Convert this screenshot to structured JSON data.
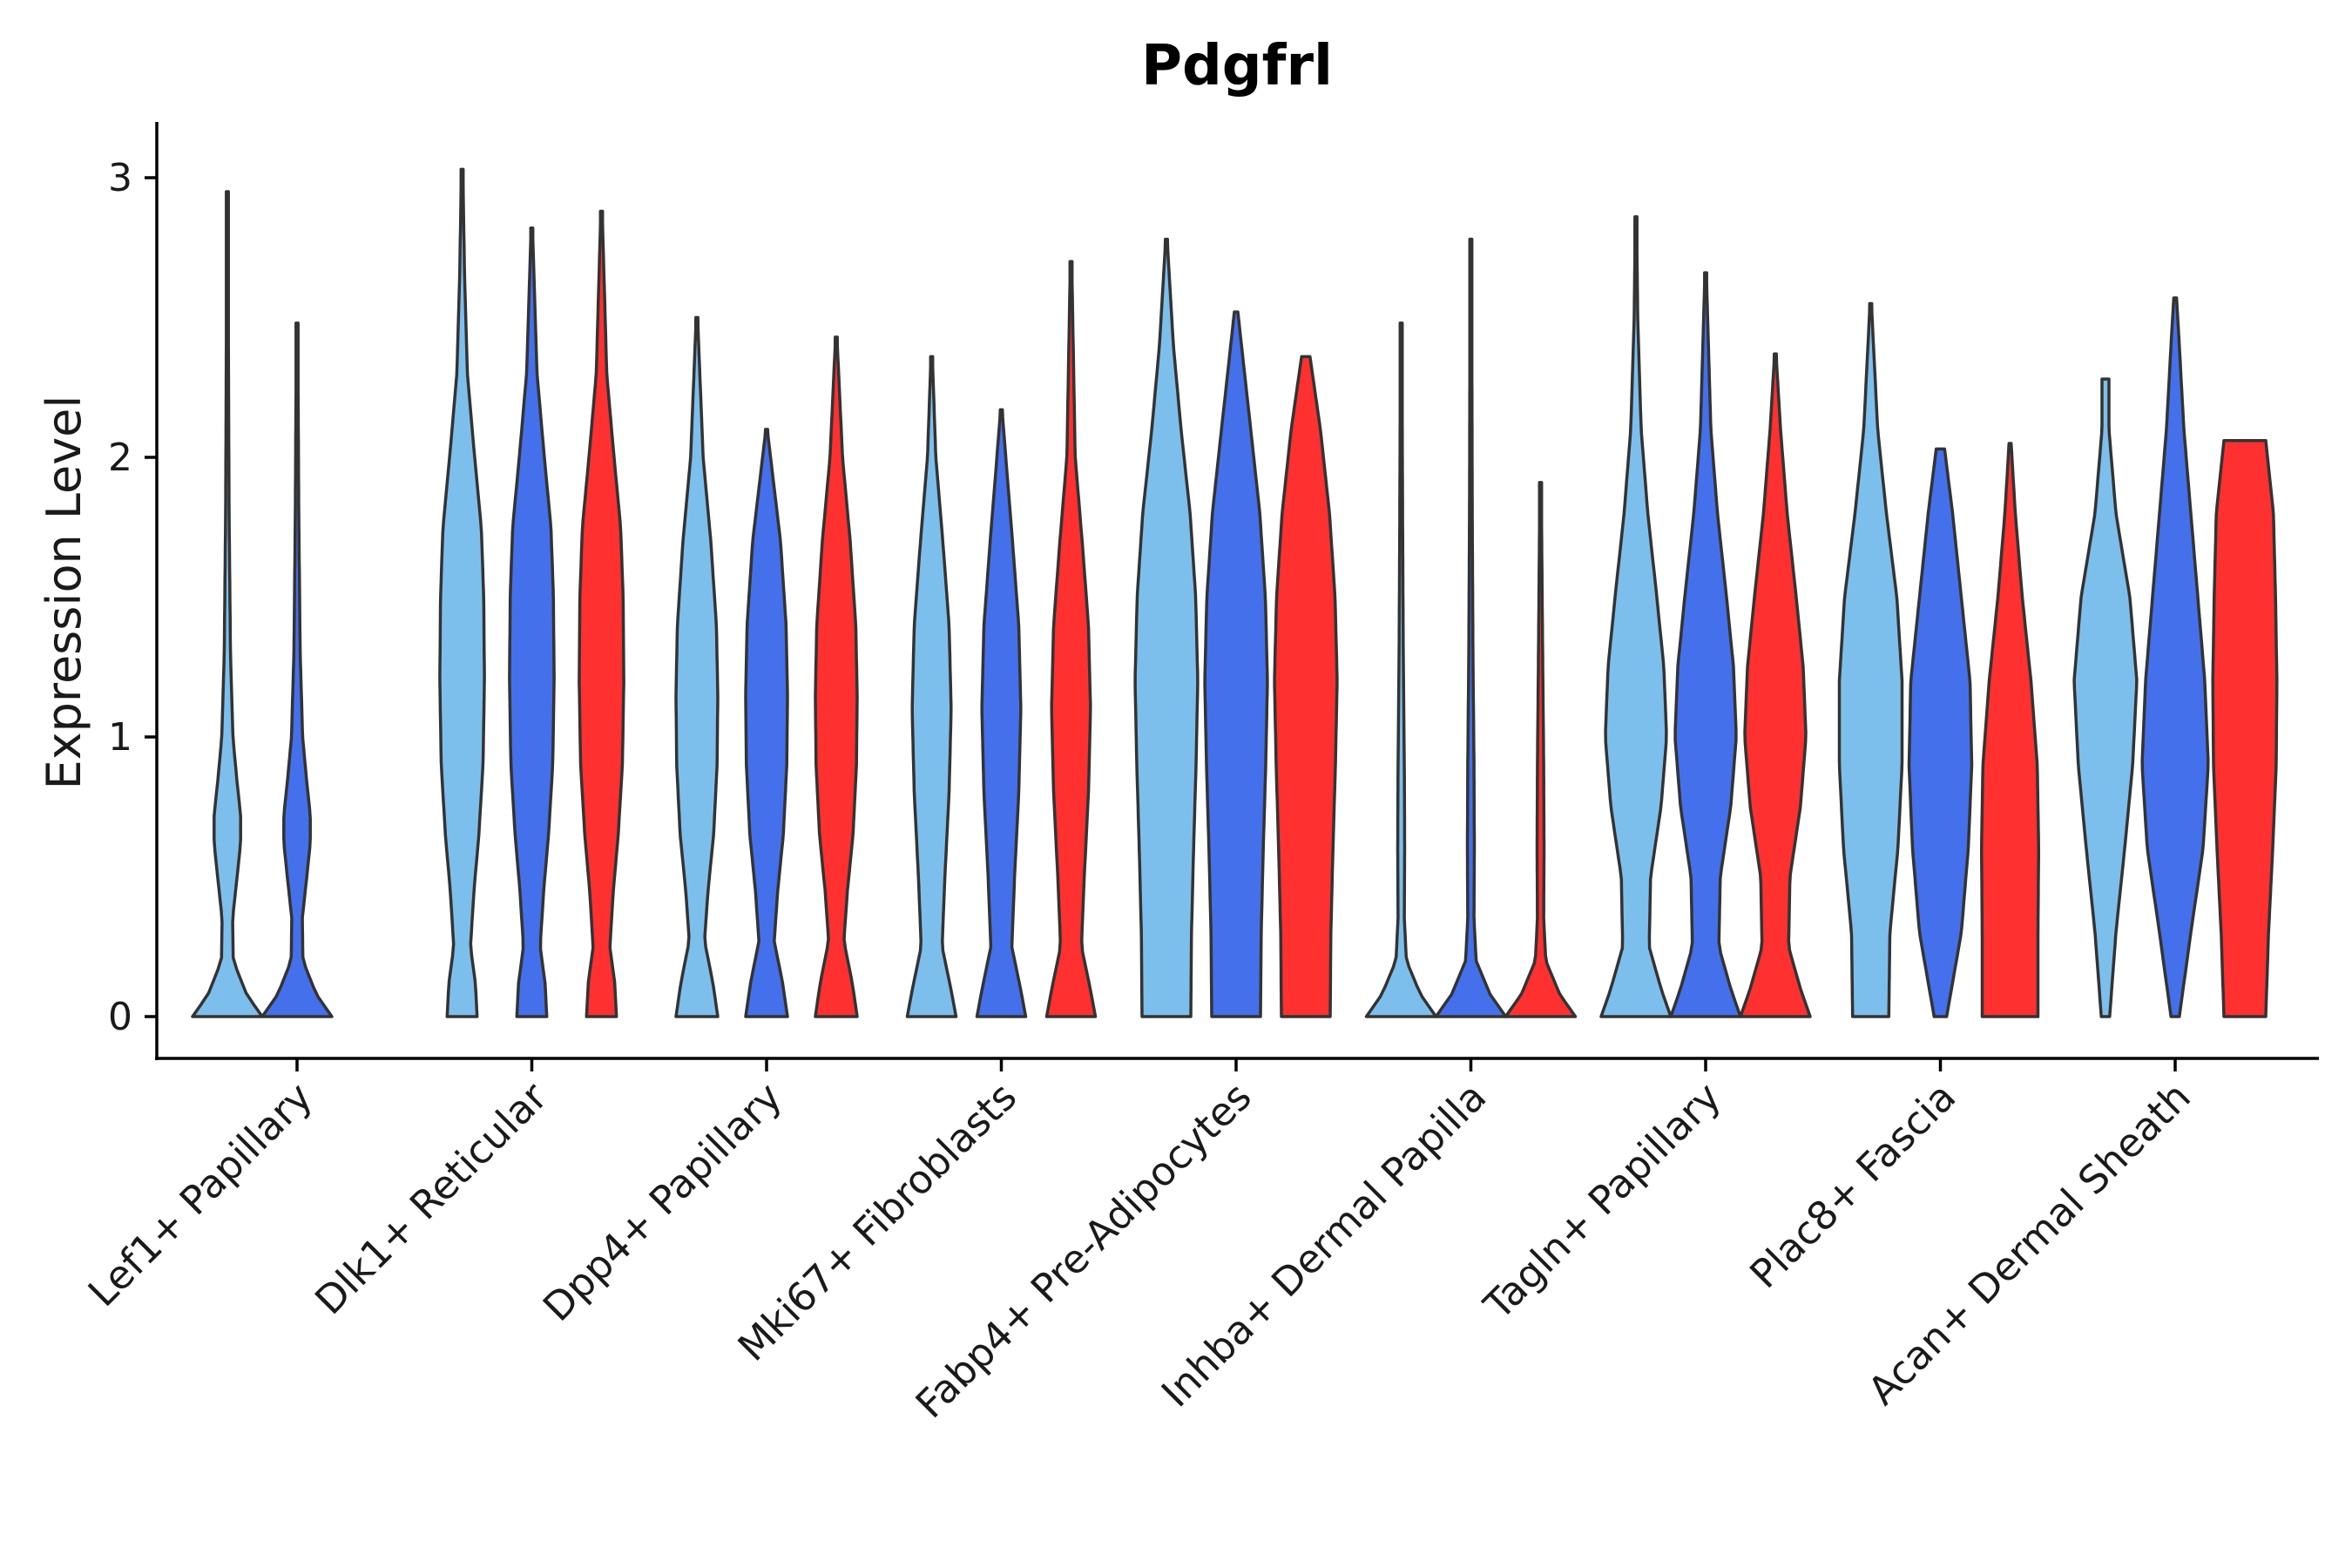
{
  "chart_data": {
    "type": "violin",
    "title": "Pdgfrl",
    "xlabel": "",
    "ylabel": "Expression Level",
    "ylim": [
      -0.15,
      3.2
    ],
    "yticks": [
      0,
      1,
      2,
      3
    ],
    "grid": false,
    "legend": "none",
    "categories": [
      "Lef1+ Papillary",
      "Dlk1+ Reticular",
      "Dpp4+ Papillary",
      "Mki67+ Fibroblasts",
      "Fabp4+ Pre-Adipocytes",
      "Inhba+ Dermal Papilla",
      "Tagln+ Papillary",
      "Plac8+ Fascia",
      "Acan+ Dermal Sheath"
    ],
    "series_colors": [
      "#7dbfec",
      "#4470eb",
      "#ff3030"
    ],
    "violins": [
      {
        "category": "Lef1+ Papillary",
        "group": 0,
        "max": 2.95,
        "density": [
          [
            0,
            1
          ],
          [
            0.08,
            0.55
          ],
          [
            0.2,
            0.17
          ],
          [
            0.35,
            0.15
          ],
          [
            0.5,
            0.28
          ],
          [
            0.62,
            0.38
          ],
          [
            0.72,
            0.38
          ],
          [
            0.85,
            0.27
          ],
          [
            1.0,
            0.16
          ],
          [
            1.3,
            0.09
          ],
          [
            1.8,
            0.05
          ],
          [
            2.4,
            0.03
          ],
          [
            2.95,
            0.02
          ]
        ]
      },
      {
        "category": "Lef1+ Papillary",
        "group": 1,
        "max": 2.48,
        "density": [
          [
            0,
            1
          ],
          [
            0.08,
            0.55
          ],
          [
            0.2,
            0.17
          ],
          [
            0.35,
            0.15
          ],
          [
            0.5,
            0.28
          ],
          [
            0.62,
            0.38
          ],
          [
            0.72,
            0.38
          ],
          [
            0.85,
            0.27
          ],
          [
            1.0,
            0.16
          ],
          [
            1.3,
            0.09
          ],
          [
            1.8,
            0.05
          ],
          [
            2.48,
            0.02
          ]
        ]
      },
      {
        "category": "Dlk1+ Reticular",
        "group": 0,
        "max": 3.03,
        "density": [
          [
            0,
            0.43
          ],
          [
            0.12,
            0.38
          ],
          [
            0.25,
            0.24
          ],
          [
            0.45,
            0.34
          ],
          [
            0.65,
            0.48
          ],
          [
            0.9,
            0.6
          ],
          [
            1.2,
            0.64
          ],
          [
            1.5,
            0.62
          ],
          [
            1.75,
            0.55
          ],
          [
            2.0,
            0.36
          ],
          [
            2.3,
            0.15
          ],
          [
            2.65,
            0.07
          ],
          [
            3.03,
            0.02
          ]
        ]
      },
      {
        "category": "Dlk1+ Reticular",
        "group": 1,
        "max": 2.82,
        "density": [
          [
            0,
            0.43
          ],
          [
            0.12,
            0.38
          ],
          [
            0.25,
            0.24
          ],
          [
            0.45,
            0.34
          ],
          [
            0.65,
            0.48
          ],
          [
            0.9,
            0.6
          ],
          [
            1.2,
            0.64
          ],
          [
            1.5,
            0.62
          ],
          [
            1.75,
            0.55
          ],
          [
            2.0,
            0.36
          ],
          [
            2.3,
            0.15
          ],
          [
            2.82,
            0.02
          ]
        ]
      },
      {
        "category": "Dlk1+ Reticular",
        "group": 2,
        "max": 2.88,
        "density": [
          [
            0,
            0.43
          ],
          [
            0.12,
            0.38
          ],
          [
            0.25,
            0.24
          ],
          [
            0.45,
            0.34
          ],
          [
            0.65,
            0.48
          ],
          [
            0.9,
            0.6
          ],
          [
            1.2,
            0.64
          ],
          [
            1.5,
            0.62
          ],
          [
            1.75,
            0.55
          ],
          [
            2.0,
            0.36
          ],
          [
            2.3,
            0.15
          ],
          [
            2.88,
            0.02
          ]
        ]
      },
      {
        "category": "Dpp4+ Papillary",
        "group": 0,
        "max": 2.5,
        "density": [
          [
            0,
            0.6
          ],
          [
            0.12,
            0.46
          ],
          [
            0.27,
            0.22
          ],
          [
            0.45,
            0.32
          ],
          [
            0.65,
            0.48
          ],
          [
            0.9,
            0.58
          ],
          [
            1.15,
            0.6
          ],
          [
            1.4,
            0.56
          ],
          [
            1.7,
            0.4
          ],
          [
            2.0,
            0.18
          ],
          [
            2.5,
            0.02
          ]
        ]
      },
      {
        "category": "Dpp4+ Papillary",
        "group": 1,
        "max": 2.1,
        "density": [
          [
            0,
            0.6
          ],
          [
            0.12,
            0.46
          ],
          [
            0.27,
            0.22
          ],
          [
            0.45,
            0.32
          ],
          [
            0.65,
            0.48
          ],
          [
            0.9,
            0.58
          ],
          [
            1.15,
            0.6
          ],
          [
            1.4,
            0.56
          ],
          [
            1.7,
            0.4
          ],
          [
            2.1,
            0.02
          ]
        ]
      },
      {
        "category": "Dpp4+ Papillary",
        "group": 2,
        "max": 2.43,
        "density": [
          [
            0,
            0.6
          ],
          [
            0.12,
            0.46
          ],
          [
            0.27,
            0.22
          ],
          [
            0.45,
            0.32
          ],
          [
            0.65,
            0.48
          ],
          [
            0.9,
            0.58
          ],
          [
            1.15,
            0.6
          ],
          [
            1.4,
            0.56
          ],
          [
            1.7,
            0.4
          ],
          [
            2.0,
            0.18
          ],
          [
            2.43,
            0.02
          ]
        ]
      },
      {
        "category": "Mki67+ Fibroblasts",
        "group": 0,
        "max": 2.36,
        "density": [
          [
            0,
            0.7
          ],
          [
            0.1,
            0.55
          ],
          [
            0.25,
            0.3
          ],
          [
            0.5,
            0.38
          ],
          [
            0.8,
            0.5
          ],
          [
            1.1,
            0.56
          ],
          [
            1.4,
            0.5
          ],
          [
            1.7,
            0.32
          ],
          [
            2.0,
            0.12
          ],
          [
            2.36,
            0.02
          ]
        ]
      },
      {
        "category": "Mki67+ Fibroblasts",
        "group": 1,
        "max": 2.17,
        "density": [
          [
            0,
            0.7
          ],
          [
            0.1,
            0.55
          ],
          [
            0.25,
            0.3
          ],
          [
            0.5,
            0.38
          ],
          [
            0.8,
            0.5
          ],
          [
            1.1,
            0.56
          ],
          [
            1.4,
            0.5
          ],
          [
            1.7,
            0.32
          ],
          [
            2.17,
            0.02
          ]
        ]
      },
      {
        "category": "Mki67+ Fibroblasts",
        "group": 2,
        "max": 2.7,
        "density": [
          [
            0,
            0.7
          ],
          [
            0.1,
            0.55
          ],
          [
            0.25,
            0.3
          ],
          [
            0.5,
            0.38
          ],
          [
            0.8,
            0.5
          ],
          [
            1.1,
            0.56
          ],
          [
            1.4,
            0.5
          ],
          [
            1.7,
            0.32
          ],
          [
            2.0,
            0.12
          ],
          [
            2.7,
            0.02
          ]
        ]
      },
      {
        "category": "Fabp4+ Pre-Adipocytes",
        "group": 0,
        "max": 2.78,
        "density": [
          [
            0,
            0.7
          ],
          [
            0.3,
            0.72
          ],
          [
            0.6,
            0.78
          ],
          [
            0.9,
            0.85
          ],
          [
            1.2,
            0.9
          ],
          [
            1.5,
            0.84
          ],
          [
            1.8,
            0.68
          ],
          [
            2.1,
            0.42
          ],
          [
            2.4,
            0.2
          ],
          [
            2.78,
            0.02
          ]
        ]
      },
      {
        "category": "Fabp4+ Pre-Adipocytes",
        "group": 1,
        "max": 2.52,
        "density": [
          [
            0,
            0.7
          ],
          [
            0.3,
            0.72
          ],
          [
            0.6,
            0.78
          ],
          [
            0.9,
            0.85
          ],
          [
            1.2,
            0.9
          ],
          [
            1.5,
            0.84
          ],
          [
            1.8,
            0.68
          ],
          [
            2.1,
            0.42
          ],
          [
            2.52,
            0.05
          ]
        ]
      },
      {
        "category": "Fabp4+ Pre-Adipocytes",
        "group": 2,
        "max": 2.36,
        "density": [
          [
            0,
            0.7
          ],
          [
            0.3,
            0.72
          ],
          [
            0.6,
            0.78
          ],
          [
            0.9,
            0.85
          ],
          [
            1.2,
            0.9
          ],
          [
            1.5,
            0.84
          ],
          [
            1.8,
            0.68
          ],
          [
            2.1,
            0.42
          ],
          [
            2.36,
            0.12
          ]
        ]
      },
      {
        "category": "Inhba+ Dermal Papilla",
        "group": 0,
        "max": 2.48,
        "density": [
          [
            0,
            1
          ],
          [
            0.08,
            0.55
          ],
          [
            0.2,
            0.15
          ],
          [
            0.35,
            0.09
          ],
          [
            0.6,
            0.1
          ],
          [
            0.9,
            0.09
          ],
          [
            1.3,
            0.06
          ],
          [
            1.8,
            0.04
          ],
          [
            2.48,
            0.02
          ]
        ]
      },
      {
        "category": "Inhba+ Dermal Papilla",
        "group": 1,
        "max": 2.78,
        "density": [
          [
            0,
            1
          ],
          [
            0.08,
            0.55
          ],
          [
            0.2,
            0.15
          ],
          [
            0.35,
            0.09
          ],
          [
            0.6,
            0.1
          ],
          [
            0.9,
            0.09
          ],
          [
            1.3,
            0.06
          ],
          [
            1.8,
            0.04
          ],
          [
            2.78,
            0.02
          ]
        ]
      },
      {
        "category": "Inhba+ Dermal Papilla",
        "group": 2,
        "max": 1.91,
        "density": [
          [
            0,
            1
          ],
          [
            0.08,
            0.55
          ],
          [
            0.2,
            0.15
          ],
          [
            0.35,
            0.09
          ],
          [
            0.6,
            0.1
          ],
          [
            0.9,
            0.09
          ],
          [
            1.3,
            0.06
          ],
          [
            1.91,
            0.02
          ]
        ]
      },
      {
        "category": "Tagln+ Papillary",
        "group": 0,
        "max": 2.86,
        "density": [
          [
            0,
            1
          ],
          [
            0.1,
            0.72
          ],
          [
            0.25,
            0.38
          ],
          [
            0.5,
            0.42
          ],
          [
            0.75,
            0.72
          ],
          [
            1.0,
            0.88
          ],
          [
            1.25,
            0.8
          ],
          [
            1.5,
            0.6
          ],
          [
            1.8,
            0.34
          ],
          [
            2.1,
            0.15
          ],
          [
            2.5,
            0.05
          ],
          [
            2.86,
            0.02
          ]
        ]
      },
      {
        "category": "Tagln+ Papillary",
        "group": 1,
        "max": 2.66,
        "density": [
          [
            0,
            1
          ],
          [
            0.1,
            0.72
          ],
          [
            0.25,
            0.38
          ],
          [
            0.5,
            0.42
          ],
          [
            0.75,
            0.72
          ],
          [
            1.0,
            0.88
          ],
          [
            1.25,
            0.8
          ],
          [
            1.5,
            0.6
          ],
          [
            1.8,
            0.34
          ],
          [
            2.1,
            0.15
          ],
          [
            2.66,
            0.02
          ]
        ]
      },
      {
        "category": "Tagln+ Papillary",
        "group": 2,
        "max": 2.37,
        "density": [
          [
            0,
            1
          ],
          [
            0.1,
            0.72
          ],
          [
            0.25,
            0.38
          ],
          [
            0.5,
            0.42
          ],
          [
            0.75,
            0.72
          ],
          [
            1.0,
            0.88
          ],
          [
            1.25,
            0.8
          ],
          [
            1.5,
            0.6
          ],
          [
            1.8,
            0.34
          ],
          [
            2.1,
            0.15
          ],
          [
            2.37,
            0.02
          ]
        ]
      },
      {
        "category": "Plac8+ Fascia",
        "group": 0,
        "max": 2.55,
        "density": [
          [
            0,
            0.52
          ],
          [
            0.3,
            0.55
          ],
          [
            0.6,
            0.78
          ],
          [
            0.9,
            0.9
          ],
          [
            1.2,
            0.9
          ],
          [
            1.5,
            0.75
          ],
          [
            1.8,
            0.45
          ],
          [
            2.1,
            0.2
          ],
          [
            2.55,
            0.02
          ]
        ]
      },
      {
        "category": "Plac8+ Fascia",
        "group": 1,
        "max": 2.03,
        "density": [
          [
            0,
            0.18
          ],
          [
            0.3,
            0.6
          ],
          [
            0.6,
            0.8
          ],
          [
            0.9,
            0.9
          ],
          [
            1.2,
            0.85
          ],
          [
            1.5,
            0.6
          ],
          [
            1.8,
            0.35
          ],
          [
            2.03,
            0.12
          ]
        ]
      },
      {
        "category": "Plac8+ Fascia",
        "group": 2,
        "max": 2.05,
        "density": [
          [
            0,
            0.8
          ],
          [
            0.3,
            0.8
          ],
          [
            0.6,
            0.82
          ],
          [
            0.9,
            0.78
          ],
          [
            1.2,
            0.6
          ],
          [
            1.5,
            0.35
          ],
          [
            1.8,
            0.15
          ],
          [
            2.05,
            0.03
          ]
        ]
      },
      {
        "category": "Acan+ Dermal Sheath",
        "group": 0,
        "max": 2.28,
        "density": [
          [
            0,
            0.12
          ],
          [
            0.3,
            0.3
          ],
          [
            0.6,
            0.55
          ],
          [
            0.9,
            0.78
          ],
          [
            1.2,
            0.9
          ],
          [
            1.5,
            0.7
          ],
          [
            1.8,
            0.3
          ],
          [
            2.1,
            0.1
          ],
          [
            2.28,
            0.1
          ]
        ]
      },
      {
        "category": "Acan+ Dermal Sheath",
        "group": 1,
        "max": 2.57,
        "density": [
          [
            0,
            0.12
          ],
          [
            0.3,
            0.45
          ],
          [
            0.6,
            0.8
          ],
          [
            0.9,
            0.95
          ],
          [
            1.2,
            0.85
          ],
          [
            1.5,
            0.65
          ],
          [
            1.8,
            0.45
          ],
          [
            2.1,
            0.25
          ],
          [
            2.4,
            0.12
          ],
          [
            2.57,
            0.04
          ]
        ]
      },
      {
        "category": "Acan+ Dermal Sheath",
        "group": 2,
        "max": 2.06,
        "density": [
          [
            0,
            0.6
          ],
          [
            0.3,
            0.68
          ],
          [
            0.6,
            0.8
          ],
          [
            0.9,
            0.9
          ],
          [
            1.2,
            0.92
          ],
          [
            1.5,
            0.88
          ],
          [
            1.8,
            0.82
          ],
          [
            2.06,
            0.6
          ]
        ]
      }
    ]
  }
}
